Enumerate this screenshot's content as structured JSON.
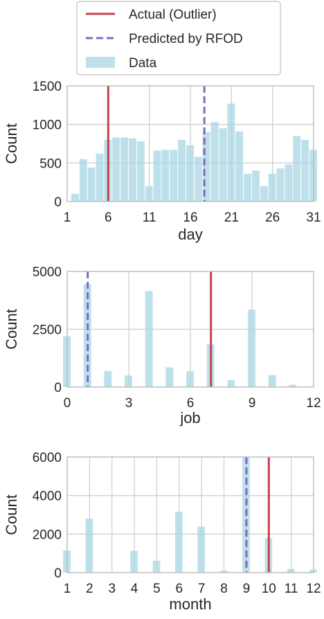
{
  "legend": {
    "actual_label": "Actual (Outlier)",
    "predicted_label": "Predicted by RFOD",
    "data_label": "Data"
  },
  "colors": {
    "actual": "#c8404a",
    "predicted": "#7a6cc0",
    "data": "#add8e6",
    "grid": "#d0d0d0",
    "frame": "#bcbcbc"
  },
  "chart_data": [
    {
      "type": "bar",
      "xlabel": "day",
      "ylabel": "Count",
      "xlim": [
        1,
        31
      ],
      "ylim": [
        0,
        1500
      ],
      "xticks": [
        1,
        6,
        11,
        16,
        21,
        26,
        31
      ],
      "yticks": [
        0,
        500,
        1000,
        1500
      ],
      "bin_width": 1,
      "bars": [
        {
          "x": 2,
          "value": 100
        },
        {
          "x": 3,
          "value": 550
        },
        {
          "x": 4,
          "value": 440
        },
        {
          "x": 5,
          "value": 620
        },
        {
          "x": 6,
          "value": 800
        },
        {
          "x": 7,
          "value": 830
        },
        {
          "x": 8,
          "value": 830
        },
        {
          "x": 9,
          "value": 820
        },
        {
          "x": 10,
          "value": 780
        },
        {
          "x": 11,
          "value": 200
        },
        {
          "x": 12,
          "value": 660
        },
        {
          "x": 13,
          "value": 670
        },
        {
          "x": 14,
          "value": 670
        },
        {
          "x": 15,
          "value": 800
        },
        {
          "x": 16,
          "value": 730
        },
        {
          "x": 17,
          "value": 580
        },
        {
          "x": 18,
          "value": 900
        },
        {
          "x": 19,
          "value": 1030
        },
        {
          "x": 20,
          "value": 950
        },
        {
          "x": 21,
          "value": 1270
        },
        {
          "x": 22,
          "value": 910
        },
        {
          "x": 23,
          "value": 360
        },
        {
          "x": 24,
          "value": 400
        },
        {
          "x": 25,
          "value": 200
        },
        {
          "x": 26,
          "value": 360
        },
        {
          "x": 27,
          "value": 430
        },
        {
          "x": 28,
          "value": 480
        },
        {
          "x": 29,
          "value": 850
        },
        {
          "x": 30,
          "value": 800
        },
        {
          "x": 31,
          "value": 670
        }
      ],
      "actual": 6,
      "predicted": 17.7
    },
    {
      "type": "bar",
      "xlabel": "job",
      "ylabel": "Count",
      "xlim": [
        0,
        12
      ],
      "ylim": [
        0,
        5000
      ],
      "xticks": [
        0,
        3,
        6,
        9,
        12
      ],
      "yticks": [
        0,
        2500,
        5000
      ],
      "bin_width": 0.4,
      "bars": [
        {
          "x": 0,
          "value": 2200
        },
        {
          "x": 1,
          "value": 4450
        },
        {
          "x": 2,
          "value": 700
        },
        {
          "x": 3,
          "value": 500
        },
        {
          "x": 4,
          "value": 4150
        },
        {
          "x": 5,
          "value": 850
        },
        {
          "x": 6,
          "value": 680
        },
        {
          "x": 7,
          "value": 1850
        },
        {
          "x": 8,
          "value": 300
        },
        {
          "x": 9,
          "value": 3350
        },
        {
          "x": 10,
          "value": 520
        },
        {
          "x": 11,
          "value": 100
        }
      ],
      "actual": 7,
      "predicted": 1
    },
    {
      "type": "bar",
      "xlabel": "month",
      "ylabel": "Count",
      "xlim": [
        1,
        12
      ],
      "ylim": [
        0,
        6000
      ],
      "xticks": [
        1,
        2,
        3,
        4,
        5,
        6,
        7,
        8,
        9,
        10,
        11,
        12
      ],
      "yticks": [
        0,
        2000,
        4000,
        6000
      ],
      "bin_width": 0.36,
      "bars": [
        {
          "x": 1,
          "value": 1150
        },
        {
          "x": 2,
          "value": 2800
        },
        {
          "x": 3,
          "value": 30
        },
        {
          "x": 4,
          "value": 1130
        },
        {
          "x": 5,
          "value": 620
        },
        {
          "x": 6,
          "value": 3150
        },
        {
          "x": 7,
          "value": 2380
        },
        {
          "x": 8,
          "value": 100
        },
        {
          "x": 9,
          "value": 6000
        },
        {
          "x": 10,
          "value": 1780
        },
        {
          "x": 11,
          "value": 190
        },
        {
          "x": 12,
          "value": 150
        }
      ],
      "actual": 10,
      "predicted": 9
    }
  ]
}
